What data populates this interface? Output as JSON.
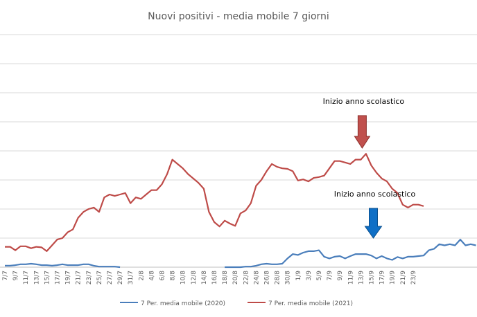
{
  "chart_data": {
    "type": "line",
    "title": "Nuovi positivi - media mobile 7 giorni",
    "legend_position": "bottom",
    "grid": true,
    "ylim": [
      0,
      8
    ],
    "y_gridlines": [
      1,
      2,
      3,
      4,
      5,
      6,
      7,
      8
    ],
    "x_start_date": "7/7",
    "tick_labels": [
      "7/7",
      "9/7",
      "11/7",
      "13/7",
      "15/7",
      "17/7",
      "19/7",
      "21/7",
      "23/7",
      "25/7",
      "27/7",
      "29/7",
      "31/7",
      "2/8",
      "4/8",
      "6/8",
      "8/8",
      "10/8",
      "12/8",
      "14/8",
      "16/8",
      "18/8",
      "20/8",
      "22/8",
      "24/8",
      "26/8",
      "28/8",
      "30/8",
      "1/9",
      "3/9",
      "5/9",
      "7/9",
      "9/9",
      "11/9",
      "13/9",
      "15/9",
      "17/9",
      "19/9",
      "21/9",
      "23/9"
    ],
    "series": [
      {
        "name": "7 Per. media mobile (2020)",
        "color": "#4a7ebb",
        "values": [
          0.05,
          0.05,
          0.07,
          0.1,
          0.1,
          0.12,
          0.1,
          0.07,
          0.07,
          0.05,
          0.07,
          0.1,
          0.07,
          0.07,
          0.07,
          0.1,
          0.1,
          0.05,
          0.02,
          0.02,
          0.02,
          0.02,
          0.0,
          null,
          null,
          null,
          null,
          null,
          null,
          null,
          null,
          null,
          null,
          null,
          null,
          null,
          null,
          null,
          null,
          null,
          null,
          null,
          0.0,
          0.0,
          0.0,
          0.0,
          0.02,
          0.02,
          0.05,
          0.1,
          0.12,
          0.1,
          0.1,
          0.12,
          0.3,
          0.45,
          0.42,
          0.5,
          0.55,
          0.55,
          0.58,
          0.36,
          0.3,
          0.36,
          0.38,
          0.3,
          0.38,
          0.45,
          0.45,
          0.45,
          0.4,
          0.3,
          0.38,
          0.3,
          0.25,
          0.35,
          0.3,
          0.36,
          0.36,
          0.38,
          0.4,
          0.58,
          0.63,
          0.79,
          0.75,
          0.79,
          0.75,
          0.95,
          0.75,
          0.79,
          0.75
        ]
      },
      {
        "name": "7 Per. media mobile (2021)",
        "color": "#be4b48",
        "values": [
          0.7,
          0.7,
          0.58,
          0.72,
          0.72,
          0.65,
          0.7,
          0.68,
          0.55,
          0.75,
          0.95,
          1.0,
          1.2,
          1.3,
          1.7,
          1.9,
          2.0,
          2.05,
          1.9,
          2.4,
          2.5,
          2.45,
          2.5,
          2.55,
          2.2,
          2.4,
          2.35,
          2.5,
          2.65,
          2.65,
          2.85,
          3.2,
          3.7,
          3.55,
          3.4,
          3.2,
          3.05,
          2.9,
          2.7,
          1.9,
          1.55,
          1.4,
          1.6,
          1.5,
          1.42,
          1.85,
          1.95,
          2.2,
          2.8,
          3.0,
          3.3,
          3.55,
          3.45,
          3.4,
          3.38,
          3.3,
          2.98,
          3.02,
          2.95,
          3.07,
          3.1,
          3.15,
          3.4,
          3.65,
          3.65,
          3.6,
          3.55,
          3.7,
          3.7,
          3.9,
          3.5,
          3.25,
          3.05,
          2.95,
          2.7,
          2.55,
          2.15,
          2.05,
          2.15,
          2.15,
          2.1
        ]
      }
    ],
    "annotations": [
      {
        "text": "Inizio anno scolastico",
        "date": "13/9",
        "series": "7 Per. media mobile (2021)"
      },
      {
        "text": "Inizio anno scolastico",
        "date": "15/9",
        "series": "7 Per. media mobile (2020)"
      }
    ]
  }
}
